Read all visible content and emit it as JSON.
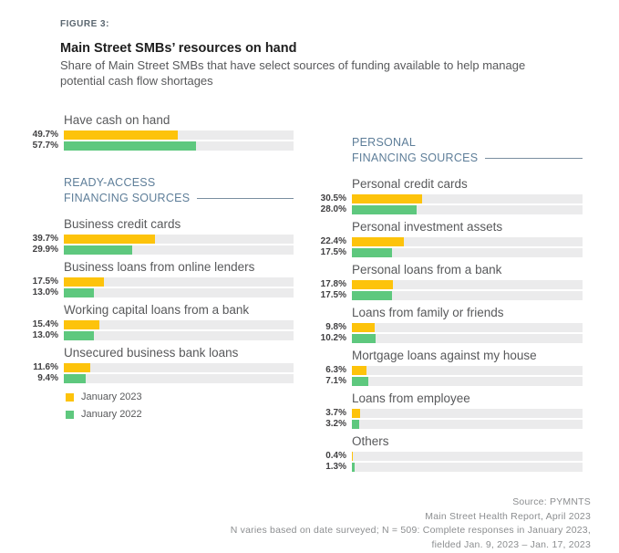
{
  "header": {
    "figure_label": "FIGURE 3:",
    "title": "Main Street SMBs’ resources on hand",
    "subtitle": "Share of Main Street SMBs that have select sources of funding available to help manage potential cash flow shortages"
  },
  "sections": {
    "ready_access": {
      "line1": "READY-ACCESS",
      "line2": "FINANCING SOURCES"
    },
    "personal": {
      "line1": "PERSONAL",
      "line2": "FINANCING SOURCES"
    }
  },
  "legend": {
    "items": [
      {
        "label": "January 2023"
      },
      {
        "label": "January 2022"
      }
    ]
  },
  "colors": {
    "series1": "#FDC30B",
    "series2": "#5EC87E",
    "track": "#EBEBEC",
    "heading": "#5E7E99",
    "rule": "#7A8EA0",
    "figure_label": "#5B6770",
    "title": "#1E1E1E",
    "text": "#58595B",
    "value": "#414042",
    "source": "#8C8E90"
  },
  "footer": {
    "lines": [
      "Source: PYMNTS",
      "Main Street Health Report, April 2023",
      "N varies based on date surveyed; N = 509: Complete responses in January 2023,",
      "fielded Jan. 9, 2023 – Jan. 17, 2023"
    ]
  },
  "chart_data": {
    "type": "bar",
    "orientation": "horizontal",
    "title": "Main Street SMBs’ resources on hand",
    "subtitle": "Share of Main Street SMBs that have select sources of funding available to help manage potential cash flow shortages",
    "series": [
      "January 2023",
      "January 2022"
    ],
    "unit": "%",
    "xlim": [
      0,
      100
    ],
    "grid": false,
    "legend_position": "bottom-left",
    "groups": [
      {
        "label": "Have cash on hand",
        "section": "top",
        "values": [
          49.7,
          57.7
        ],
        "display": [
          "49.7%",
          "57.7%"
        ]
      },
      {
        "label": "Business credit cards",
        "section": "READY-ACCESS FINANCING SOURCES",
        "values": [
          39.7,
          29.9
        ],
        "display": [
          "39.7%",
          "29.9%"
        ]
      },
      {
        "label": "Business loans from online lenders",
        "section": "READY-ACCESS FINANCING SOURCES",
        "values": [
          17.5,
          13.0
        ],
        "display": [
          "17.5%",
          "13.0%"
        ]
      },
      {
        "label": "Working capital loans from a bank",
        "section": "READY-ACCESS FINANCING SOURCES",
        "values": [
          15.4,
          13.0
        ],
        "display": [
          "15.4%",
          "13.0%"
        ]
      },
      {
        "label": "Unsecured business bank loans",
        "section": "READY-ACCESS FINANCING SOURCES",
        "values": [
          11.6,
          9.4
        ],
        "display": [
          "11.6%",
          "9.4%"
        ]
      },
      {
        "label": "Personal credit cards",
        "section": "PERSONAL FINANCING SOURCES",
        "values": [
          30.5,
          28.0
        ],
        "display": [
          "30.5%",
          "28.0%"
        ]
      },
      {
        "label": "Personal investment assets",
        "section": "PERSONAL FINANCING SOURCES",
        "values": [
          22.4,
          17.5
        ],
        "display": [
          "22.4%",
          "17.5%"
        ]
      },
      {
        "label": "Personal loans from a bank",
        "section": "PERSONAL FINANCING SOURCES",
        "values": [
          17.8,
          17.5
        ],
        "display": [
          "17.8%",
          "17.5%"
        ]
      },
      {
        "label": "Loans from family or friends",
        "section": "PERSONAL FINANCING SOURCES",
        "values": [
          9.8,
          10.2
        ],
        "display": [
          "9.8%",
          "10.2%"
        ]
      },
      {
        "label": "Mortgage loans against my house",
        "section": "PERSONAL FINANCING SOURCES",
        "values": [
          6.3,
          7.1
        ],
        "display": [
          "6.3%",
          "7.1%"
        ]
      },
      {
        "label": "Loans from employee",
        "section": "PERSONAL FINANCING SOURCES",
        "values": [
          3.7,
          3.2
        ],
        "display": [
          "3.7%",
          "3.2%"
        ]
      },
      {
        "label": "Others",
        "section": "PERSONAL FINANCING SOURCES",
        "values": [
          0.4,
          1.3
        ],
        "display": [
          "0.4%",
          "1.3%"
        ]
      }
    ]
  }
}
